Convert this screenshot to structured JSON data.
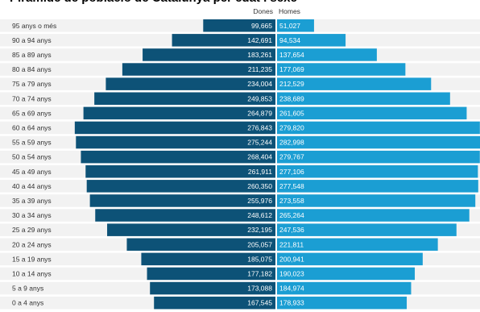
{
  "chart_data": {
    "type": "bar",
    "title": "",
    "series": [
      {
        "name": "Dones",
        "color": "#0d5277",
        "values": [
          99665,
          142691,
          183261,
          211235,
          234004,
          249853,
          264879,
          276843,
          275244,
          268404,
          261911,
          260350,
          255976,
          248612,
          232195,
          205057,
          185075,
          177182,
          173088,
          167545
        ],
        "labels": [
          "99,665",
          "142,691",
          "183,261",
          "211,235",
          "234,004",
          "249,853",
          "264,879",
          "276,843",
          "275,244",
          "268,404",
          "261,911",
          "260,350",
          "255,976",
          "248,612",
          "232,195",
          "205,057",
          "185,075",
          "177,182",
          "173,088",
          "167,545"
        ]
      },
      {
        "name": "Homes",
        "color": "#1b9ed3",
        "values": [
          51027,
          94534,
          137654,
          177069,
          212529,
          238689,
          261605,
          279820,
          282998,
          279767,
          277106,
          277548,
          273558,
          265264,
          247536,
          221811,
          200941,
          190023,
          184974,
          178933
        ],
        "labels": [
          "51,027",
          "94,534",
          "137,654",
          "177,069",
          "212,529",
          "238,689",
          "261,605",
          "279,820",
          "282,998",
          "279,767",
          "277,106",
          "277,548",
          "273,558",
          "265,264",
          "247,536",
          "221,811",
          "200,941",
          "190,023",
          "184,974",
          "178,933"
        ]
      }
    ],
    "categories": [
      "95 anys o més",
      "90 a 94 anys",
      "85 a 89 anys",
      "80 a 84 anys",
      "75 a 79 anys",
      "70 a 74 anys",
      "65 a 69 anys",
      "60 a 64 anys",
      "55 a 59 anys",
      "50 a 54 anys",
      "45 a 49 anys",
      "40 a 44 anys",
      "35 a 39 anys",
      "30 a 34 anys",
      "25 a 29 anys",
      "20 a 24 anys",
      "15 a 19 anys",
      "10 a 14 anys",
      "5 a 9 anys",
      "0 a 4 anys"
    ]
  }
}
